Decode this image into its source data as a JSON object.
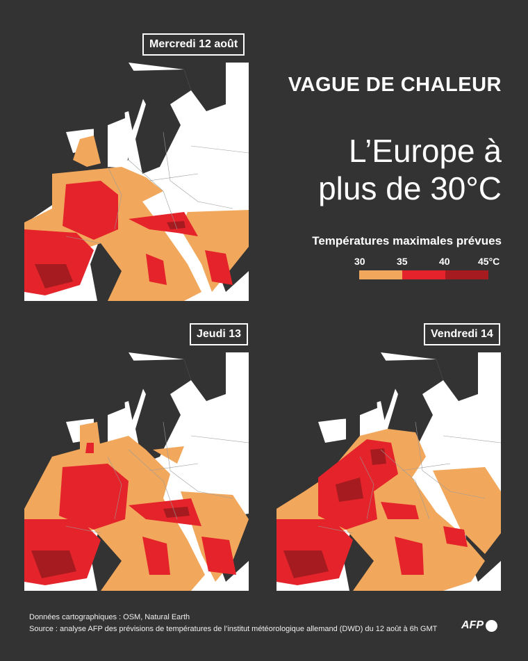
{
  "kicker": "VAGUE DE CHALEUR",
  "title_line1": "L’Europe à",
  "title_line2": "plus de 30°C",
  "legend": {
    "title": "Températures maximales prévues",
    "ticks": [
      "30",
      "35",
      "40",
      "45°C"
    ],
    "bins": [
      {
        "from": 30,
        "to": 35,
        "color": "#f2a85c"
      },
      {
        "from": 35,
        "to": 40,
        "color": "#e5232a"
      },
      {
        "from": 40,
        "to": 45,
        "color": "#a51b1f"
      }
    ]
  },
  "colors": {
    "background": "#333333",
    "land": "#ffffff",
    "sea": "#333333",
    "borders": "#9a9a9a"
  },
  "maps": [
    {
      "day": "Mercredi 12 août"
    },
    {
      "day": "Jeudi 13"
    },
    {
      "day": "Vendredi 14"
    }
  ],
  "credits": {
    "data": "Données cartographiques : OSM, Natural Earth",
    "source": "Source : analyse AFP des prévisions de températures de l’institut météorologique allemand (DWD) du 12 août à 6h GMT"
  },
  "logo": "AFP"
}
